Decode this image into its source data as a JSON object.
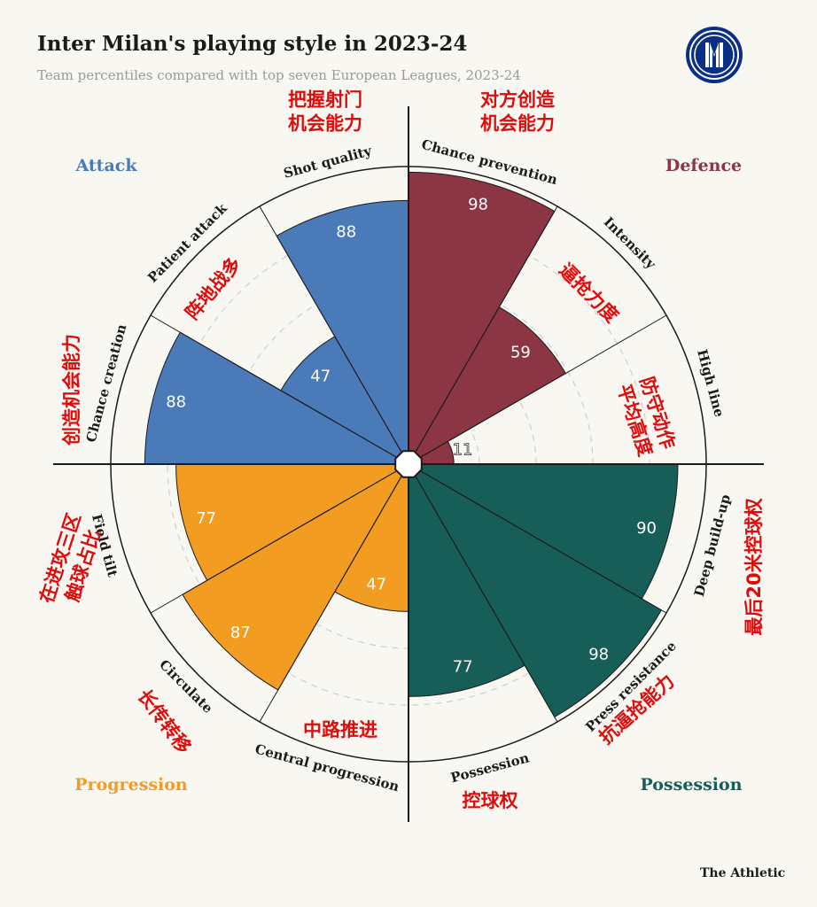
{
  "header": {
    "title": "Inter Milan's playing style in 2023-24",
    "subtitle": "Team percentiles compared with top seven European Leagues, 2023-24"
  },
  "footer": {
    "credit": "The Athletic"
  },
  "logo": {
    "icon": "inter-milan-crest-icon",
    "color": "#0b2f86"
  },
  "colors": {
    "attack": "#4a7ab8",
    "defence": "#8b3545",
    "progression": "#f39c22",
    "possession": "#185e58",
    "annotation": "#e00b0b",
    "background": "#f8f7f2"
  },
  "chart_data": {
    "type": "radial-bar",
    "scale": [
      0,
      100
    ],
    "groups": [
      {
        "name": "Attack",
        "color": "#4a7ab8"
      },
      {
        "name": "Defence",
        "color": "#8b3545"
      },
      {
        "name": "Progression",
        "color": "#f39c22"
      },
      {
        "name": "Possession",
        "color": "#185e58"
      }
    ],
    "metrics": [
      {
        "label": "Chance prevention",
        "cn": [
          "对方创造",
          "机会能力"
        ],
        "value": 98,
        "group": "Defence"
      },
      {
        "label": "Intensity",
        "cn": [
          "逼抢力度"
        ],
        "value": 59,
        "group": "Defence"
      },
      {
        "label": "High line",
        "cn": [
          "防守动作",
          "平均高度"
        ],
        "value": 11,
        "group": "Defence"
      },
      {
        "label": "Deep build-up",
        "cn": [
          "最后20米控球权"
        ],
        "value": 90,
        "group": "Possession"
      },
      {
        "label": "Press resistance",
        "cn": [
          "抗逼抢能力"
        ],
        "value": 98,
        "group": "Possession"
      },
      {
        "label": "Possession",
        "cn": [
          "控球权"
        ],
        "value": 77,
        "group": "Possession"
      },
      {
        "label": "Central progression",
        "cn": [
          "中路推进"
        ],
        "value": 47,
        "group": "Progression"
      },
      {
        "label": "Circulate",
        "cn": [
          "长传转移"
        ],
        "value": 87,
        "group": "Progression"
      },
      {
        "label": "Field tilt",
        "cn": [
          "在进攻三区",
          "触球占比"
        ],
        "value": 77,
        "group": "Progression"
      },
      {
        "label": "Chance creation",
        "cn": [
          "创造机会能力"
        ],
        "value": 88,
        "group": "Attack"
      },
      {
        "label": "Patient attack",
        "cn": [
          "阵地战多"
        ],
        "value": 47,
        "group": "Attack"
      },
      {
        "label": "Shot quality",
        "cn": [
          "把握射门",
          "机会能力"
        ],
        "value": 88,
        "group": "Attack"
      }
    ]
  }
}
